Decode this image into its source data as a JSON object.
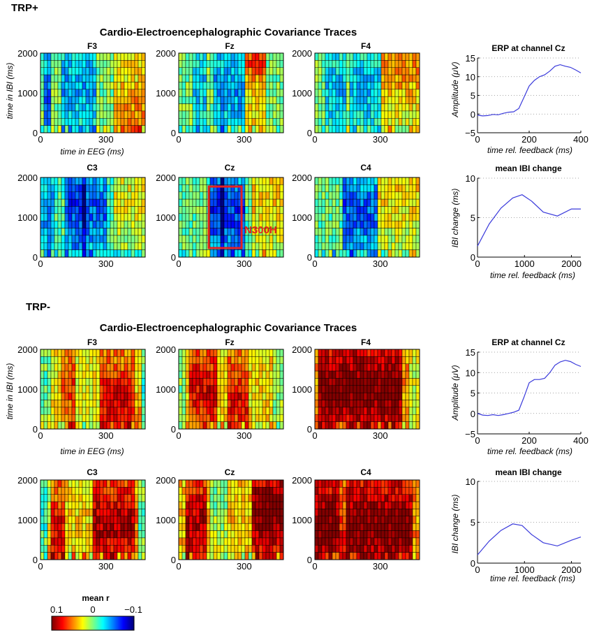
{
  "groups": [
    {
      "label": "TRP+",
      "title": "Cardio-Electroencephalographic Covariance Traces",
      "row_channels": [
        [
          "F3",
          "Fz",
          "F4"
        ],
        [
          "C3",
          "Cz",
          "C4"
        ]
      ],
      "heatmap_ylabel": "time in IBI (ms)",
      "heatmap_xlabel": "time in EEG (ms)",
      "annotation": "N300H",
      "erp_title": "ERP at channel Cz",
      "erp_ylabel": "Amplitude (μV)",
      "ibi_title": "mean IBI change",
      "ibi_ylabel": "IBI change (ms)",
      "time_xlabel": "time rel. feedback (ms)"
    },
    {
      "label": "TRP-",
      "title": "Cardio-Electroencephalographic Covariance Traces",
      "row_channels": [
        [
          "F3",
          "Fz",
          "F4"
        ],
        [
          "C3",
          "Cz",
          "C4"
        ]
      ],
      "heatmap_ylabel": "time in IBI (ms)",
      "heatmap_xlabel": "time in EEG (ms)",
      "erp_title": "ERP at channel Cz",
      "erp_ylabel": "Amplitude (μV)",
      "ibi_title": "mean IBI change",
      "ibi_ylabel": "IBI change (ms)",
      "time_xlabel": "time rel. feedback (ms)"
    }
  ],
  "colorbar": {
    "title": "mean r",
    "ticks": [
      "0.1",
      "0",
      "−0.1"
    ]
  },
  "colors": {
    "line": "#3a3adb",
    "annotation": "#e8201f"
  },
  "chart_data": [
    {
      "type": "heatmap",
      "description": "Covariance trace matrices: EEG time (x, ms, 0–480) vs IBI time (y, ms, 0–2000); color = mean r (0.1 red … −0.1 blue)",
      "xlim": [
        0,
        480
      ],
      "ylim": [
        0,
        2000
      ],
      "xticks": [
        0,
        300
      ],
      "yticks": [
        0,
        1000,
        2000
      ],
      "colorscale": {
        "min": -0.1,
        "max": 0.1
      },
      "panels": [
        {
          "group": "TRP+",
          "channel": "F3",
          "base": 0.0,
          "cold": [
            [
              20,
              50,
              -0.055,
              0.45
            ],
            [
              100,
              160,
              -0.045,
              0.5
            ],
            [
              160,
              260,
              -0.04,
              0.6
            ]
          ],
          "warm": [
            [
              330,
              480,
              0.05,
              0.2
            ]
          ]
        },
        {
          "group": "TRP+",
          "channel": "Fz",
          "base": 0.0,
          "cold": [
            [
              60,
              130,
              -0.035,
              0.6
            ],
            [
              160,
              300,
              -0.045,
              0.55
            ]
          ],
          "warm": [
            [
              300,
              400,
              0.06,
              0.95
            ]
          ]
        },
        {
          "group": "TRP+",
          "channel": "F4",
          "base": 0.0,
          "cold": [
            [
              50,
              150,
              -0.035,
              0.5
            ],
            [
              160,
              300,
              -0.035,
              0.55
            ]
          ],
          "warm": [
            [
              300,
              480,
              0.045,
              0.8
            ]
          ]
        },
        {
          "group": "TRP+",
          "channel": "C3",
          "base": -0.01,
          "cold": [
            [
              120,
              200,
              -0.055,
              0.65
            ],
            [
              200,
              300,
              -0.045,
              0.6
            ],
            [
              0,
              60,
              -0.035,
              0.5
            ]
          ],
          "warm": [
            [
              340,
              480,
              0.035,
              0.7
            ]
          ]
        },
        {
          "group": "TRP+",
          "channel": "Cz",
          "base": -0.005,
          "cold": [
            [
              140,
              200,
              -0.065,
              0.6
            ],
            [
              200,
              300,
              -0.06,
              0.55
            ]
          ],
          "warm": [
            [
              330,
              480,
              0.04,
              0.75
            ]
          ]
        },
        {
          "group": "TRP+",
          "channel": "C4",
          "base": -0.005,
          "cold": [
            [
              130,
              190,
              -0.055,
              0.6
            ],
            [
              200,
              290,
              -0.05,
              0.55
            ]
          ],
          "warm": [
            [
              290,
              480,
              0.04,
              0.85
            ]
          ]
        },
        {
          "group": "TRP-",
          "channel": "F3",
          "base": 0.025,
          "cold": [
            [
              0,
              40,
              -0.03,
              0.6
            ],
            [
              430,
              480,
              -0.04,
              0.5
            ]
          ],
          "warm": [
            [
              280,
              460,
              0.055,
              0.3
            ],
            [
              100,
              160,
              0.04,
              0.5
            ]
          ]
        },
        {
          "group": "TRP-",
          "channel": "Fz",
          "base": 0.03,
          "cold": [
            [
              0,
              30,
              -0.03,
              0.5
            ],
            [
              440,
              480,
              -0.03,
              0.5
            ]
          ],
          "warm": [
            [
              50,
              180,
              0.05,
              0.5
            ],
            [
              220,
              320,
              0.045,
              0.4
            ]
          ]
        },
        {
          "group": "TRP-",
          "channel": "F4",
          "base": 0.045,
          "cold": [
            [
              440,
              480,
              -0.03,
              0.5
            ]
          ],
          "warm": [
            [
              20,
              400,
              0.06,
              0.5
            ]
          ]
        },
        {
          "group": "TRP-",
          "channel": "C3",
          "base": 0.03,
          "cold": [
            [
              0,
              40,
              -0.05,
              0.6
            ],
            [
              430,
              480,
              -0.035,
              0.5
            ]
          ],
          "warm": [
            [
              40,
              110,
              0.05,
              0.3
            ],
            [
              240,
              440,
              0.06,
              0.45
            ]
          ]
        },
        {
          "group": "TRP-",
          "channel": "Cz",
          "base": 0.035,
          "cold": [
            [
              150,
              230,
              -0.035,
              0.7
            ]
          ],
          "warm": [
            [
              30,
              120,
              0.055,
              0.45
            ],
            [
              330,
              480,
              0.07,
              0.6
            ]
          ]
        },
        {
          "group": "TRP-",
          "channel": "C4",
          "base": 0.045,
          "cold": [
            [
              120,
              150,
              -0.035,
              0.6
            ]
          ],
          "warm": [
            [
              0,
              450,
              0.06,
              0.4
            ]
          ]
        }
      ]
    },
    {
      "type": "line",
      "group": "TRP+",
      "title": "ERP at channel Cz",
      "xlabel": "time rel. feedback (ms)",
      "ylabel": "Amplitude (μV)",
      "xlim": [
        0,
        400
      ],
      "ylim": [
        -5,
        15
      ],
      "xticks": [
        0,
        200,
        400
      ],
      "yticks": [
        -5,
        0,
        5,
        10,
        15
      ],
      "x": [
        0,
        20,
        40,
        60,
        80,
        100,
        120,
        140,
        160,
        180,
        200,
        220,
        240,
        260,
        280,
        300,
        320,
        340,
        360,
        380,
        400
      ],
      "y": [
        -0.3,
        -0.5,
        -0.4,
        -0.1,
        -0.2,
        0.2,
        0.5,
        0.6,
        1.5,
        4.5,
        7.5,
        9.0,
        10.0,
        10.5,
        11.5,
        12.8,
        13.2,
        12.8,
        12.5,
        11.8,
        11.0
      ]
    },
    {
      "type": "line",
      "group": "TRP+",
      "title": "mean IBI change",
      "xlabel": "time rel. feedback (ms)",
      "ylabel": "IBI change (ms)",
      "xlim": [
        0,
        2200
      ],
      "ylim": [
        0,
        10
      ],
      "xticks": [
        0,
        1000,
        2000
      ],
      "yticks": [
        0,
        5,
        10
      ],
      "x": [
        0,
        250,
        500,
        750,
        950,
        1150,
        1400,
        1700,
        2000,
        2200
      ],
      "y": [
        1.4,
        4.2,
        6.2,
        7.5,
        7.9,
        7.1,
        5.7,
        5.2,
        6.1,
        6.1
      ]
    },
    {
      "type": "line",
      "group": "TRP-",
      "title": "ERP at channel Cz",
      "xlabel": "time rel. feedback (ms)",
      "ylabel": "Amplitude (μV)",
      "xlim": [
        0,
        400
      ],
      "ylim": [
        -5,
        15
      ],
      "xticks": [
        0,
        200,
        400
      ],
      "yticks": [
        -5,
        0,
        5,
        10,
        15
      ],
      "x": [
        0,
        20,
        40,
        60,
        80,
        100,
        120,
        140,
        160,
        180,
        200,
        220,
        240,
        260,
        280,
        300,
        320,
        340,
        360,
        380,
        400
      ],
      "y": [
        0.0,
        -0.4,
        -0.5,
        -0.3,
        -0.5,
        -0.3,
        0.0,
        0.3,
        0.8,
        4.0,
        7.5,
        8.3,
        8.3,
        8.6,
        10.0,
        11.8,
        12.6,
        13.0,
        12.7,
        12.0,
        11.5
      ]
    },
    {
      "type": "line",
      "group": "TRP-",
      "title": "mean IBI change",
      "xlabel": "time rel. feedback (ms)",
      "ylabel": "IBI change (ms)",
      "xlim": [
        0,
        2200
      ],
      "ylim": [
        0,
        10
      ],
      "xticks": [
        0,
        1000,
        2000
      ],
      "yticks": [
        0,
        5,
        10
      ],
      "x": [
        0,
        250,
        500,
        750,
        950,
        1150,
        1400,
        1700,
        2000,
        2200
      ],
      "y": [
        1.0,
        2.7,
        4.0,
        4.8,
        4.6,
        3.5,
        2.5,
        2.1,
        2.8,
        3.2
      ]
    }
  ]
}
